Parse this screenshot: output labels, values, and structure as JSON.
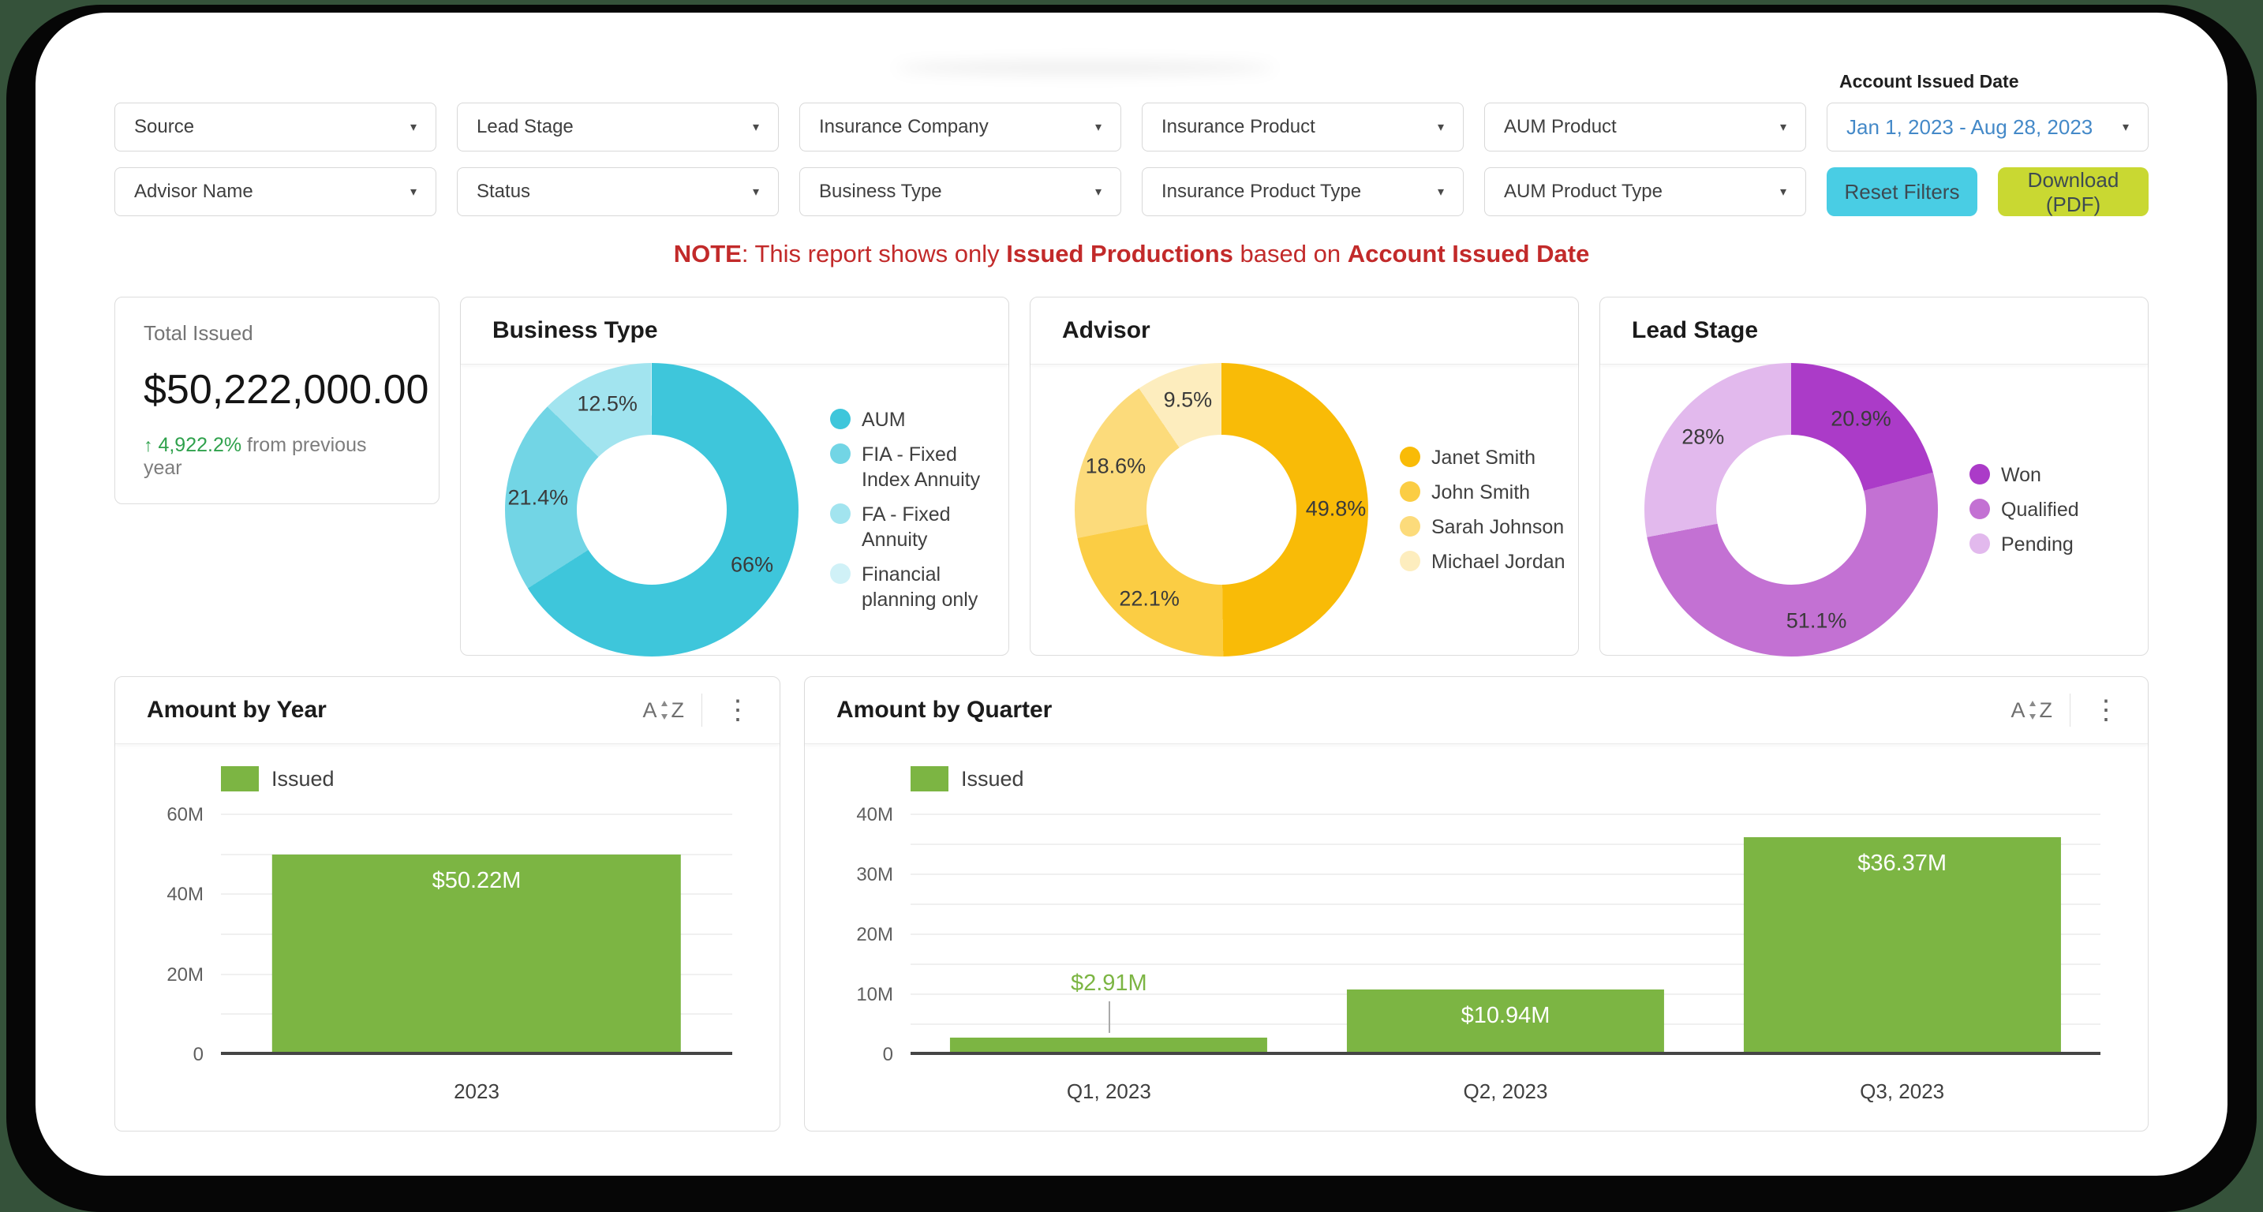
{
  "icons": {
    "sort_a": "A",
    "sort_z": "Z",
    "more": "⋮",
    "caret": "▾",
    "delta_up": "↑"
  },
  "filters": {
    "row1": [
      {
        "label": "Source"
      },
      {
        "label": "Lead Stage"
      },
      {
        "label": "Insurance Company"
      },
      {
        "label": "Insurance Product"
      },
      {
        "label": "AUM Product"
      }
    ],
    "row2": [
      {
        "label": "Advisor Name"
      },
      {
        "label": "Status"
      },
      {
        "label": "Business Type"
      },
      {
        "label": "Insurance Product Type"
      },
      {
        "label": "AUM Product Type"
      }
    ],
    "date_label": "Account Issued Date",
    "date_value": "Jan 1, 2023 - Aug 28, 2023",
    "reset_button": "Reset Filters",
    "reset_color": "#49cde4",
    "download_button": "Download (PDF)",
    "download_color": "#c9d832"
  },
  "note": {
    "prefix_bold": "NOTE",
    "text_1": ": This report shows only ",
    "bold_1": "Issued Productions",
    "text_2": " based on ",
    "bold_2": "Account Issued Date",
    "color": "#c22a2a"
  },
  "kpi": {
    "title": "Total Issued",
    "value": "$50,222,000.00",
    "delta_pct": "4,922.2%",
    "delta_suffix": " from previous year",
    "delta_color": "#2fa14c"
  },
  "chart_data": [
    {
      "id": "business_type",
      "type": "pie",
      "donut": true,
      "title": "Business Type",
      "legend_position": "right",
      "slices": [
        {
          "label": "AUM",
          "value": 66,
          "display": "66%",
          "color": "#3ec6db"
        },
        {
          "label": "FIA - Fixed Index Annuity",
          "value": 21.4,
          "display": "21.4%",
          "color": "#72d5e5"
        },
        {
          "label": "FA - Fixed Annuity",
          "value": 12.5,
          "display": "12.5%",
          "color": "#a2e4ef"
        },
        {
          "label": "Financial planning only",
          "value": 0.1,
          "display": "",
          "color": "#d0f1f7"
        }
      ]
    },
    {
      "id": "advisor",
      "type": "pie",
      "donut": true,
      "title": "Advisor",
      "legend_position": "right",
      "slices": [
        {
          "label": "Janet Smith",
          "value": 49.8,
          "display": "49.8%",
          "color": "#f9bb07"
        },
        {
          "label": "John Smith",
          "value": 22.1,
          "display": "22.1%",
          "color": "#fbcd44"
        },
        {
          "label": "Sarah Johnson",
          "value": 18.6,
          "display": "18.6%",
          "color": "#fcdb7b"
        },
        {
          "label": "Michael Jordan",
          "value": 9.5,
          "display": "9.5%",
          "color": "#fdedbe"
        }
      ]
    },
    {
      "id": "lead_stage",
      "type": "pie",
      "donut": true,
      "title": "Lead Stage",
      "legend_position": "right",
      "slices": [
        {
          "label": "Won",
          "value": 20.9,
          "display": "20.9%",
          "color": "#ab3bc8"
        },
        {
          "label": "Qualified",
          "value": 51.1,
          "display": "51.1%",
          "color": "#c371d3"
        },
        {
          "label": "Pending",
          "value": 28,
          "display": "28%",
          "color": "#e2b9ed"
        }
      ]
    },
    {
      "id": "amount_by_year",
      "type": "bar",
      "title": "Amount by Year",
      "legend": "Issued",
      "bar_color": "#7cb543",
      "above_label_color": "#7cb543",
      "categories": [
        "2023"
      ],
      "values": [
        50.22
      ],
      "value_labels": [
        "$50.22M"
      ],
      "label_styles": [
        "inside"
      ],
      "ylim": [
        0,
        60
      ],
      "minor_step": 10,
      "yticks": [
        {
          "v": 0,
          "label": "0"
        },
        {
          "v": 20,
          "label": "20M"
        },
        {
          "v": 40,
          "label": "40M"
        },
        {
          "v": 60,
          "label": "60M"
        }
      ]
    },
    {
      "id": "amount_by_quarter",
      "type": "bar",
      "title": "Amount by Quarter",
      "legend": "Issued",
      "bar_color": "#7cb543",
      "above_label_color": "#7cb543",
      "categories": [
        "Q1, 2023",
        "Q2, 2023",
        "Q3, 2023"
      ],
      "values": [
        2.91,
        10.94,
        36.37
      ],
      "value_labels": [
        "$2.91M",
        "$10.94M",
        "$36.37M"
      ],
      "label_styles": [
        "above",
        "inside",
        "inside"
      ],
      "ylim": [
        0,
        40
      ],
      "minor_step": 5,
      "yticks": [
        {
          "v": 0,
          "label": "0"
        },
        {
          "v": 10,
          "label": "10M"
        },
        {
          "v": 20,
          "label": "20M"
        },
        {
          "v": 30,
          "label": "30M"
        },
        {
          "v": 40,
          "label": "40M"
        }
      ]
    }
  ]
}
